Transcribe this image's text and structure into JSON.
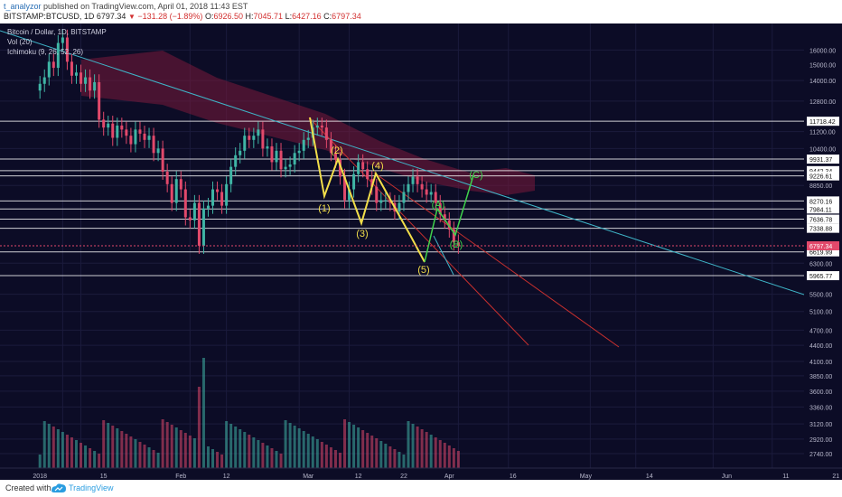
{
  "header": {
    "author": "t_analyzor",
    "published_text": "published on TradingView.com, April 01, 2018 11:43 EST",
    "symbol": "BITSTAMP:BTCUSD, 1D",
    "last": "6797.34",
    "change": "−131.28 (−1.89%)",
    "o_label": "O:",
    "o_value": "6926.50",
    "h_label": "H:",
    "h_value": "7045.71",
    "l_label": "L:",
    "l_value": "6427.16",
    "c_label": "C:",
    "c_value": "6797.34"
  },
  "legend": {
    "title": "Bitcoin / Dollar, 1D, BITSTAMP",
    "vol": "Vol (20)",
    "ichimoku": "Ichimoku (9, 26, 52, 26)"
  },
  "footer": {
    "created_with": "Created with",
    "brand": "TradingView"
  },
  "colors": {
    "background": "#0c0c26",
    "up": "#3fb5a5",
    "down": "#e2496b",
    "wave_impulse": "#f2de4a",
    "wave_correction": "#3fd24c",
    "trend_line": "#3fb5c8",
    "channel_line": "#c8302e",
    "cloud": "#7a1a3a",
    "price_line": "#ffffff"
  },
  "chart_data": {
    "type": "candlestick",
    "title": "Bitcoin / Dollar, 1D, BITSTAMP",
    "y_scale": "log",
    "ylim": [
      2600,
      19000
    ],
    "x_ticks": [
      "2018",
      "15",
      "Feb",
      "12",
      "Mar",
      "12",
      "22",
      "Apr",
      "16",
      "May",
      "14",
      "Jun",
      "11",
      "21"
    ],
    "y_ticks": [
      "16000.00",
      "15000.00",
      "14000.00",
      "12800.00",
      "11200.00",
      "10400.00",
      "8850.00",
      "6300.00",
      "5500.00",
      "5100.00",
      "4700.00",
      "4400.00",
      "4100.00",
      "3850.00",
      "3600.00",
      "3360.00",
      "3120.00",
      "2920.00",
      "2740.00"
    ],
    "horizontal_levels": [
      "11718.42",
      "9931.37",
      "9442.34",
      "9226.61",
      "8270.16",
      "7984.11",
      "7636.78",
      "7338.88",
      "6619.99",
      "5965.77"
    ],
    "current_price": "6797.34",
    "wave_labels": [
      "(1)",
      "(2)",
      "(3)",
      "(4)",
      "(5)",
      "(A)",
      "(B)",
      "(C)"
    ]
  }
}
